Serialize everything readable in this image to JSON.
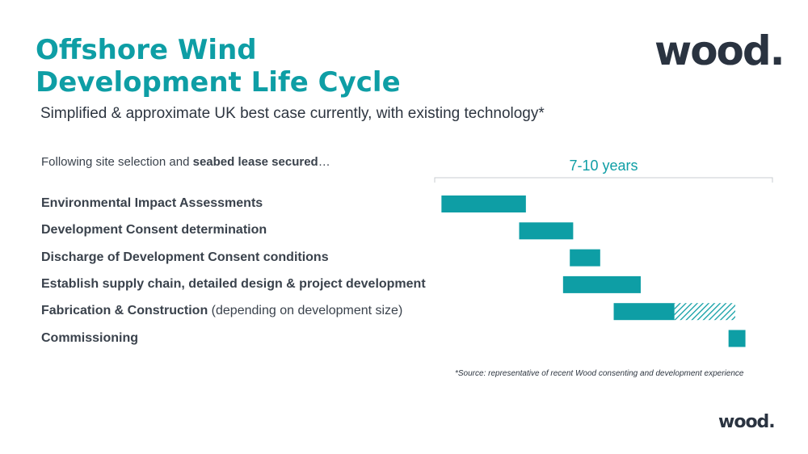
{
  "title_line1": "Offshore Wind",
  "title_line2": "Development Life Cycle",
  "subtitle": "Simplified & approximate UK best case currently, with existing technology*",
  "intro": {
    "prefix": "Following site selection and ",
    "bold": "seabed lease secured",
    "suffix": "…"
  },
  "logo_text": "wood.",
  "source_note": "*Source: representative of recent Wood consenting and development experience",
  "colors": {
    "accent": "#0e9ea5",
    "text": "#3a424c",
    "logo": "#2a3340"
  },
  "chart_data": {
    "type": "gantt",
    "span_label": "7-10 years",
    "tasks": [
      {
        "label": "Environmental Impact Assessments",
        "note": "",
        "start": 0.02,
        "end": 0.27,
        "extended_end": null
      },
      {
        "label": "Development Consent determination",
        "note": "",
        "start": 0.25,
        "end": 0.41,
        "extended_end": null
      },
      {
        "label": "Discharge of Development Consent conditions",
        "note": "",
        "start": 0.4,
        "end": 0.49,
        "extended_end": null
      },
      {
        "label": "Establish supply chain, detailed design & project development",
        "note": "",
        "start": 0.38,
        "end": 0.61,
        "extended_end": null
      },
      {
        "label": "Fabrication & Construction",
        "note": " (depending on development size)",
        "start": 0.53,
        "end": 0.71,
        "extended_end": 0.89
      },
      {
        "label": "Commissioning",
        "note": "",
        "start": 0.87,
        "end": 0.92,
        "extended_end": null
      }
    ]
  }
}
